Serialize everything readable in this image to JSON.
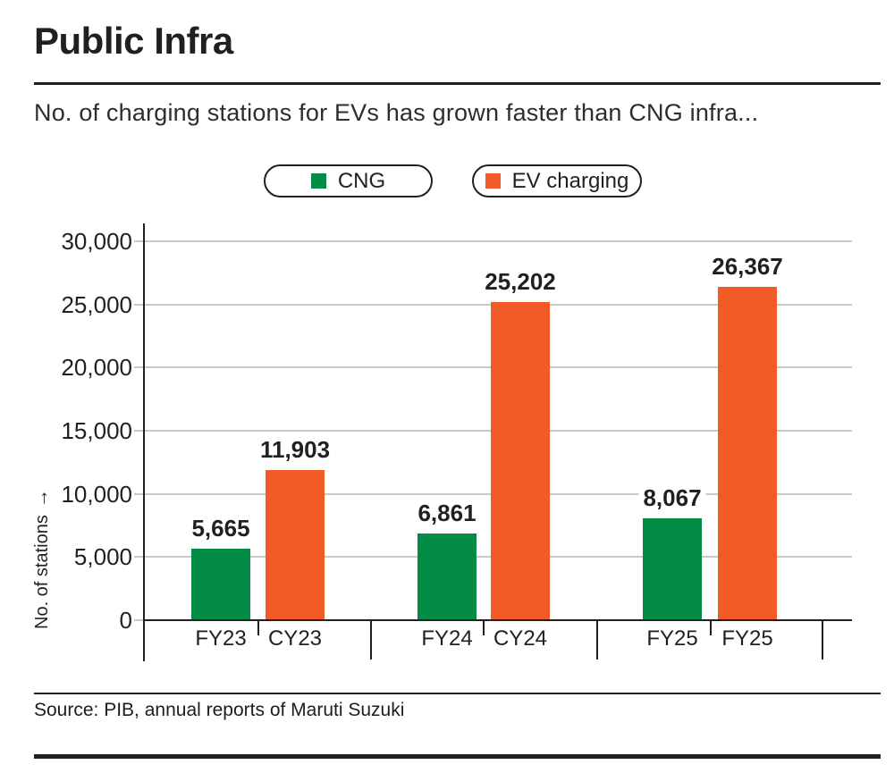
{
  "header": {
    "title": "Public Infra",
    "subtitle": "No. of charging stations for EVs has grown faster than CNG infra..."
  },
  "legend": {
    "items": [
      {
        "label": "CNG",
        "color": "#048b45"
      },
      {
        "label": "EV charging",
        "color": "#f15b25"
      }
    ]
  },
  "chart_data": {
    "type": "bar",
    "title": "Public Infra",
    "ylabel": "No. of stations",
    "ylabel_arrow": "→",
    "ylim": [
      0,
      30000
    ],
    "yticks": [
      0,
      5000,
      10000,
      15000,
      20000,
      25000,
      30000
    ],
    "ytick_labels": [
      "0",
      "5,000",
      "10,000",
      "15,000",
      "20,000",
      "25,000",
      "30,000"
    ],
    "grid": true,
    "legend_position": "top",
    "series": [
      {
        "name": "CNG",
        "color": "#048b45",
        "values": [
          5665,
          6861,
          8067
        ],
        "categories": [
          "FY23",
          "FY24",
          "FY25"
        ]
      },
      {
        "name": "EV charging",
        "color": "#f15b25",
        "values": [
          11903,
          25202,
          26367
        ],
        "categories": [
          "CY23",
          "CY24",
          "FY25"
        ]
      }
    ],
    "bars": [
      {
        "series": "CNG",
        "x_label": "FY23",
        "value": 5665,
        "value_label": "5,665"
      },
      {
        "series": "EV charging",
        "x_label": "CY23",
        "value": 11903,
        "value_label": "11,903"
      },
      {
        "series": "CNG",
        "x_label": "FY24",
        "value": 6861,
        "value_label": "6,861"
      },
      {
        "series": "EV charging",
        "x_label": "CY24",
        "value": 25202,
        "value_label": "25,202"
      },
      {
        "series": "CNG",
        "x_label": "FY25",
        "value": 8067,
        "value_label": "8,067"
      },
      {
        "series": "EV charging",
        "x_label": "FY25",
        "value": 26367,
        "value_label": "26,367"
      }
    ]
  },
  "footer": {
    "source": "Source: PIB, annual reports of Maruti Suzuki"
  }
}
